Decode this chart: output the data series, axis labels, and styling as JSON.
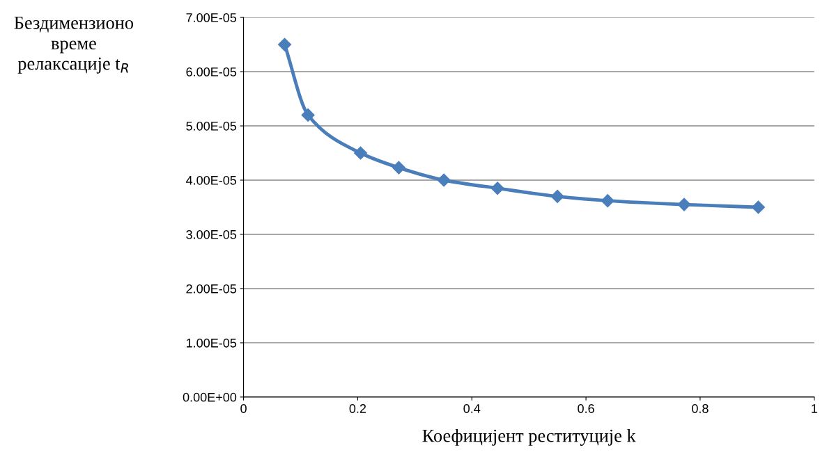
{
  "chart_data": {
    "type": "line",
    "xlabel": "Коефицијент реституције k",
    "ylabel": "Бездимензионо\nвреме\nрелаксације t$_{R}$",
    "x": [
      0.072,
      0.113,
      0.205,
      0.272,
      0.351,
      0.445,
      0.55,
      0.638,
      0.772,
      0.902
    ],
    "series": [
      {
        "color": "#4a7ebb",
        "values": [
          6.5e-05,
          5.2e-05,
          4.5e-05,
          4.23e-05,
          4e-05,
          3.85e-05,
          3.7e-05,
          3.62e-05,
          3.55e-05,
          3.5e-05
        ]
      }
    ],
    "xlim": [
      0,
      1
    ],
    "xticks": [
      0,
      0.2,
      0.4,
      0.6,
      0.8,
      1
    ],
    "ylim": [
      0,
      7e-05
    ],
    "yticks": [
      {
        "value": 0,
        "label": "0.00E+00"
      },
      {
        "value": 1e-05,
        "label": "1.00E-05"
      },
      {
        "value": 2e-05,
        "label": "2.00E-05"
      },
      {
        "value": 3e-05,
        "label": "3.00E-05"
      },
      {
        "value": 4e-05,
        "label": "4.00E-05"
      },
      {
        "value": 5e-05,
        "label": "5.00E-05"
      },
      {
        "value": 6e-05,
        "label": "6.00E-05"
      },
      {
        "value": 7e-05,
        "label": "7.00E-05"
      }
    ],
    "grid": "y",
    "marker": "diamond",
    "line_style": "solid",
    "legend": false
  }
}
